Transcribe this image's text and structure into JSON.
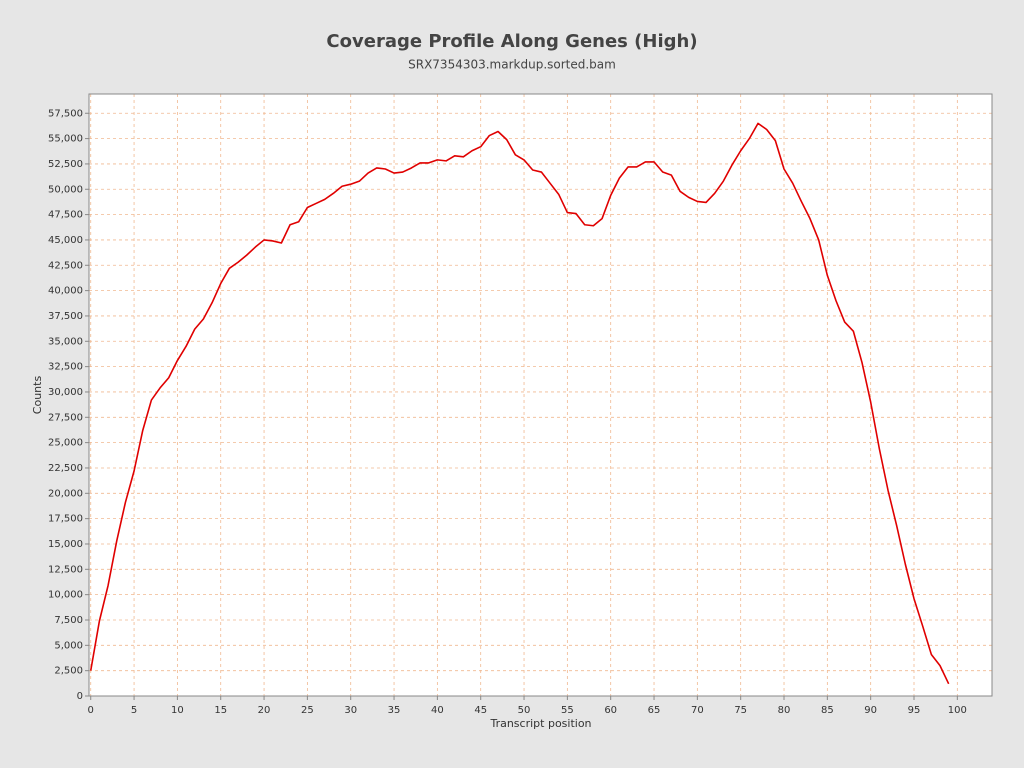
{
  "chart_data": {
    "type": "line",
    "title": "Coverage Profile Along Genes (High)",
    "subtitle": "SRX7354303.markdup.sorted.bam",
    "x_label": "Transcript position",
    "y_label": "Counts",
    "color": "#e00000",
    "grid": true,
    "xlim": [
      -0.2,
      104
    ],
    "ylim": [
      0,
      59400
    ],
    "xticks": [
      0,
      5,
      10,
      15,
      20,
      25,
      30,
      35,
      40,
      45,
      50,
      55,
      60,
      65,
      70,
      75,
      80,
      85,
      90,
      95,
      100
    ],
    "yticks": [
      0,
      {
        "value": 2500,
        "label": "2,500"
      },
      {
        "value": 5000,
        "label": "5,000"
      },
      {
        "value": 7500,
        "label": "7,500"
      },
      {
        "value": 10000,
        "label": "10,000"
      },
      {
        "value": 12500,
        "label": "12,500"
      },
      {
        "value": 15000,
        "label": "15,000"
      },
      {
        "value": 17500,
        "label": "17,500"
      },
      {
        "value": 20000,
        "label": "20,000"
      },
      {
        "value": 22500,
        "label": "22,500"
      },
      {
        "value": 25000,
        "label": "25,000"
      },
      {
        "value": 27500,
        "label": "27,500"
      },
      {
        "value": 30000,
        "label": "30,000"
      },
      {
        "value": 32500,
        "label": "32,500"
      },
      {
        "value": 35000,
        "label": "35,000"
      },
      {
        "value": 37500,
        "label": "37,500"
      },
      {
        "value": 40000,
        "label": "40,000"
      },
      {
        "value": 42500,
        "label": "42,500"
      },
      {
        "value": 45000,
        "label": "45,000"
      },
      {
        "value": 47500,
        "label": "47,500"
      },
      {
        "value": 50000,
        "label": "50,000"
      },
      {
        "value": 52500,
        "label": "52,500"
      },
      {
        "value": 55000,
        "label": "55,000"
      },
      {
        "value": 57500,
        "label": "57,500"
      }
    ],
    "x": [
      0,
      1,
      2,
      3,
      4,
      5,
      6,
      7,
      8,
      9,
      10,
      11,
      12,
      13,
      14,
      15,
      16,
      17,
      18,
      19,
      20,
      21,
      22,
      23,
      24,
      25,
      26,
      27,
      28,
      29,
      30,
      31,
      32,
      33,
      34,
      35,
      36,
      37,
      38,
      39,
      40,
      41,
      42,
      43,
      44,
      45,
      46,
      47,
      48,
      49,
      50,
      51,
      52,
      53,
      54,
      55,
      56,
      57,
      58,
      59,
      60,
      61,
      62,
      63,
      64,
      65,
      66,
      67,
      68,
      69,
      70,
      71,
      72,
      73,
      74,
      75,
      76,
      77,
      78,
      79,
      80,
      81,
      82,
      83,
      84,
      85,
      86,
      87,
      88,
      89,
      90,
      91,
      92,
      93,
      94,
      95,
      96,
      97,
      98,
      99
    ],
    "values": [
      2500,
      7400,
      10900,
      15300,
      19100,
      22200,
      26200,
      29200,
      30400,
      31400,
      33100,
      34500,
      36200,
      37200,
      38800,
      40700,
      42200,
      42800,
      43500,
      44300,
      45000,
      44900,
      44700,
      46500,
      46800,
      48200,
      48600,
      49000,
      49600,
      50300,
      50500,
      50800,
      51600,
      52100,
      52000,
      51600,
      51700,
      52100,
      52600,
      52600,
      52900,
      52800,
      53300,
      53200,
      53800,
      54200,
      55300,
      55700,
      54900,
      53400,
      52900,
      51900,
      51700,
      50600,
      49500,
      47700,
      47600,
      46500,
      46400,
      47100,
      49400,
      51100,
      52200,
      52200,
      52700,
      52700,
      51700,
      51400,
      49800,
      49200,
      48800,
      48700,
      49600,
      50800,
      52400,
      53800,
      55000,
      56500,
      55900,
      54800,
      52000,
      50600,
      48800,
      47100,
      45000,
      41500,
      39000,
      36900,
      36000,
      32900,
      29000,
      24400,
      20300,
      16800,
      13000,
      9600,
      6900,
      4100,
      3000,
      1200
    ]
  }
}
